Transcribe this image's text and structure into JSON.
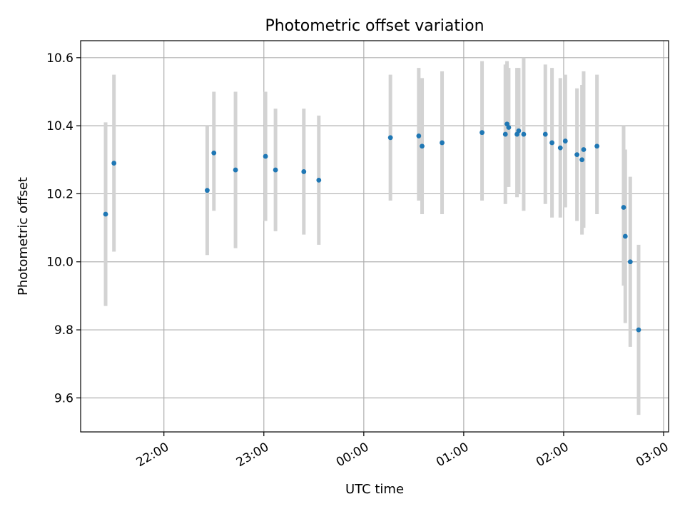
{
  "chart_data": {
    "type": "scatter",
    "title": "Photometric offset variation",
    "xlabel": "UTC time",
    "ylabel": "Photometric offset",
    "x_axis_type": "time",
    "xlim": [
      "21:10",
      "03:03"
    ],
    "ylim": [
      9.5,
      10.65
    ],
    "x_ticks": [
      "22:00",
      "23:00",
      "00:00",
      "01:00",
      "02:00",
      "03:00"
    ],
    "y_ticks": [
      9.6,
      9.8,
      10.0,
      10.2,
      10.4,
      10.6
    ],
    "grid": true,
    "point_color": "#1f77b4",
    "errorbar_color": "#d3d3d3",
    "points": [
      {
        "t": "21:25",
        "y": 10.14,
        "lo": 9.87,
        "hi": 10.41
      },
      {
        "t": "21:30",
        "y": 10.29,
        "lo": 10.03,
        "hi": 10.55
      },
      {
        "t": "22:26",
        "y": 10.21,
        "lo": 10.02,
        "hi": 10.4
      },
      {
        "t": "22:30",
        "y": 10.32,
        "lo": 10.15,
        "hi": 10.5
      },
      {
        "t": "22:43",
        "y": 10.27,
        "lo": 10.04,
        "hi": 10.5
      },
      {
        "t": "23:01",
        "y": 10.31,
        "lo": 10.12,
        "hi": 10.5
      },
      {
        "t": "23:07",
        "y": 10.27,
        "lo": 10.09,
        "hi": 10.45
      },
      {
        "t": "23:24",
        "y": 10.265,
        "lo": 10.08,
        "hi": 10.45
      },
      {
        "t": "23:33",
        "y": 10.24,
        "lo": 10.05,
        "hi": 10.43
      },
      {
        "t": "00:16",
        "y": 10.365,
        "lo": 10.18,
        "hi": 10.55
      },
      {
        "t": "00:33",
        "y": 10.37,
        "lo": 10.18,
        "hi": 10.57
      },
      {
        "t": "00:35",
        "y": 10.34,
        "lo": 10.14,
        "hi": 10.54
      },
      {
        "t": "00:47",
        "y": 10.35,
        "lo": 10.14,
        "hi": 10.56
      },
      {
        "t": "01:11",
        "y": 10.38,
        "lo": 10.18,
        "hi": 10.59
      },
      {
        "t": "01:25",
        "y": 10.375,
        "lo": 10.17,
        "hi": 10.58
      },
      {
        "t": "01:26",
        "y": 10.405,
        "lo": 10.22,
        "hi": 10.59
      },
      {
        "t": "01:27",
        "y": 10.395,
        "lo": 10.22,
        "hi": 10.57
      },
      {
        "t": "01:32",
        "y": 10.375,
        "lo": 10.19,
        "hi": 10.57
      },
      {
        "t": "01:33",
        "y": 10.385,
        "lo": 10.2,
        "hi": 10.57
      },
      {
        "t": "01:36",
        "y": 10.375,
        "lo": 10.15,
        "hi": 10.6
      },
      {
        "t": "01:49",
        "y": 10.375,
        "lo": 10.17,
        "hi": 10.58
      },
      {
        "t": "01:53",
        "y": 10.35,
        "lo": 10.13,
        "hi": 10.57
      },
      {
        "t": "01:58",
        "y": 10.335,
        "lo": 10.13,
        "hi": 10.54
      },
      {
        "t": "02:01",
        "y": 10.355,
        "lo": 10.16,
        "hi": 10.55
      },
      {
        "t": "02:08",
        "y": 10.315,
        "lo": 10.12,
        "hi": 10.51
      },
      {
        "t": "02:11",
        "y": 10.3,
        "lo": 10.08,
        "hi": 10.52
      },
      {
        "t": "02:12",
        "y": 10.33,
        "lo": 10.1,
        "hi": 10.56
      },
      {
        "t": "02:20",
        "y": 10.34,
        "lo": 10.14,
        "hi": 10.55
      },
      {
        "t": "02:36",
        "y": 10.16,
        "lo": 9.93,
        "hi": 10.4
      },
      {
        "t": "02:37",
        "y": 10.075,
        "lo": 9.82,
        "hi": 10.33
      },
      {
        "t": "02:40",
        "y": 10.0,
        "lo": 9.75,
        "hi": 10.25
      },
      {
        "t": "02:45",
        "y": 9.8,
        "lo": 9.55,
        "hi": 10.05
      }
    ]
  }
}
